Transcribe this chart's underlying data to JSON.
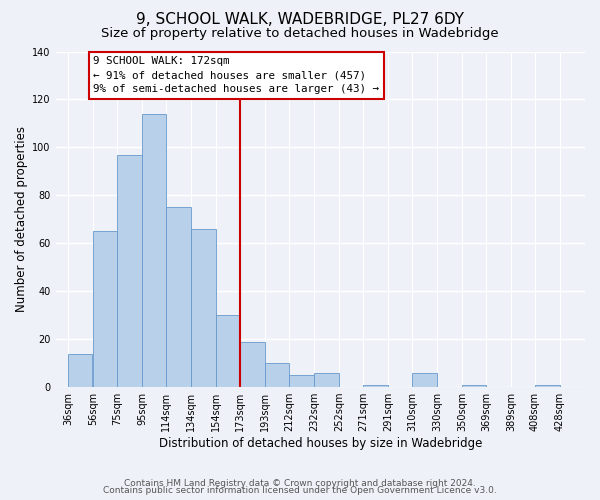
{
  "title": "9, SCHOOL WALK, WADEBRIDGE, PL27 6DY",
  "subtitle": "Size of property relative to detached houses in Wadebridge",
  "xlabel": "Distribution of detached houses by size in Wadebridge",
  "ylabel": "Number of detached properties",
  "bar_left_edges": [
    36,
    56,
    75,
    95,
    114,
    134,
    154,
    173,
    193,
    212,
    232,
    252,
    271,
    291,
    310,
    330,
    350,
    369,
    389,
    408
  ],
  "bar_heights": [
    14,
    65,
    97,
    114,
    75,
    66,
    30,
    19,
    10,
    5,
    6,
    0,
    1,
    0,
    6,
    0,
    1,
    0,
    0,
    1
  ],
  "bar_widths": [
    19,
    19,
    20,
    19,
    20,
    20,
    19,
    20,
    19,
    20,
    20,
    19,
    20,
    19,
    20,
    20,
    19,
    20,
    19,
    20
  ],
  "bar_color": "#b8d0ea",
  "bar_edge_color": "#6699cc",
  "vline_x": 173,
  "vline_color": "#cc0000",
  "annotation_text": "9 SCHOOL WALK: 172sqm\n← 91% of detached houses are smaller (457)\n9% of semi-detached houses are larger (43) →",
  "annotation_box_color": "#ffffff",
  "annotation_box_edge": "#cc0000",
  "tick_labels": [
    "36sqm",
    "56sqm",
    "75sqm",
    "95sqm",
    "114sqm",
    "134sqm",
    "154sqm",
    "173sqm",
    "193sqm",
    "212sqm",
    "232sqm",
    "252sqm",
    "271sqm",
    "291sqm",
    "310sqm",
    "330sqm",
    "350sqm",
    "369sqm",
    "389sqm",
    "408sqm",
    "428sqm"
  ],
  "tick_positions": [
    36,
    56,
    75,
    95,
    114,
    134,
    154,
    173,
    193,
    212,
    232,
    252,
    271,
    291,
    310,
    330,
    350,
    369,
    389,
    408,
    428
  ],
  "ylim": [
    0,
    140
  ],
  "xlim": [
    26,
    448
  ],
  "yticks": [
    0,
    20,
    40,
    60,
    80,
    100,
    120,
    140
  ],
  "footer1": "Contains HM Land Registry data © Crown copyright and database right 2024.",
  "footer2": "Contains public sector information licensed under the Open Government Licence v3.0.",
  "bg_color": "#eef2f8",
  "grid_color": "#ffffff",
  "title_fontsize": 11,
  "subtitle_fontsize": 9.5,
  "axis_label_fontsize": 8.5,
  "tick_fontsize": 7,
  "footer_fontsize": 6.5,
  "annotation_fontsize": 7.8
}
